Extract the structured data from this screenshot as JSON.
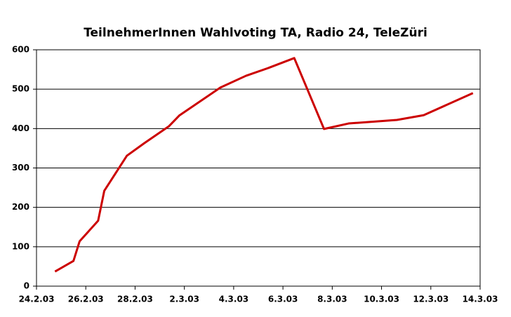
{
  "chart_data": {
    "type": "line",
    "title": "TeilnehmerInnen Wahlvoting TA, Radio 24, TeleZüri",
    "x": [
      "2003-02-24T18:00",
      "2003-02-25T12:00",
      "2003-02-25T18:00",
      "2003-02-26T12:00",
      "2003-02-26T18:00",
      "2003-02-27T16:00",
      "2003-02-28T09:00",
      "2003-03-01T09:00",
      "2003-03-01T19:00",
      "2003-03-03T11:00",
      "2003-03-04T12:00",
      "2003-03-05T10:00",
      "2003-03-06T11:00",
      "2003-03-07T16:00",
      "2003-03-08T16:00",
      "2003-03-10T15:00",
      "2003-03-11T17:00",
      "2003-03-13T17:00"
    ],
    "series": [
      {
        "name": "TeilnehmerInnen",
        "color": "#cc0000",
        "values": [
          37,
          64,
          114,
          166,
          242,
          331,
          363,
          406,
          433,
          504,
          534,
          554,
          579,
          399,
          413,
          422,
          434,
          490
        ]
      }
    ],
    "xlim": [
      "2003-02-24",
      "2003-03-14"
    ],
    "xticks": [
      {
        "value": "2003-02-24",
        "label": "24.2.03"
      },
      {
        "value": "2003-02-26",
        "label": "26.2.03"
      },
      {
        "value": "2003-02-28",
        "label": "28.2.03"
      },
      {
        "value": "2003-03-02",
        "label": "2.3.03"
      },
      {
        "value": "2003-03-04",
        "label": "4.3.03"
      },
      {
        "value": "2003-03-06",
        "label": "6.3.03"
      },
      {
        "value": "2003-03-08",
        "label": "8.3.03"
      },
      {
        "value": "2003-03-10",
        "label": "10.3.03"
      },
      {
        "value": "2003-03-12",
        "label": "12.3.03"
      },
      {
        "value": "2003-03-14",
        "label": "14.3.03"
      }
    ],
    "ylim": [
      0,
      600
    ],
    "yticks": [
      0,
      100,
      200,
      300,
      400,
      500,
      600
    ],
    "grid": true
  }
}
